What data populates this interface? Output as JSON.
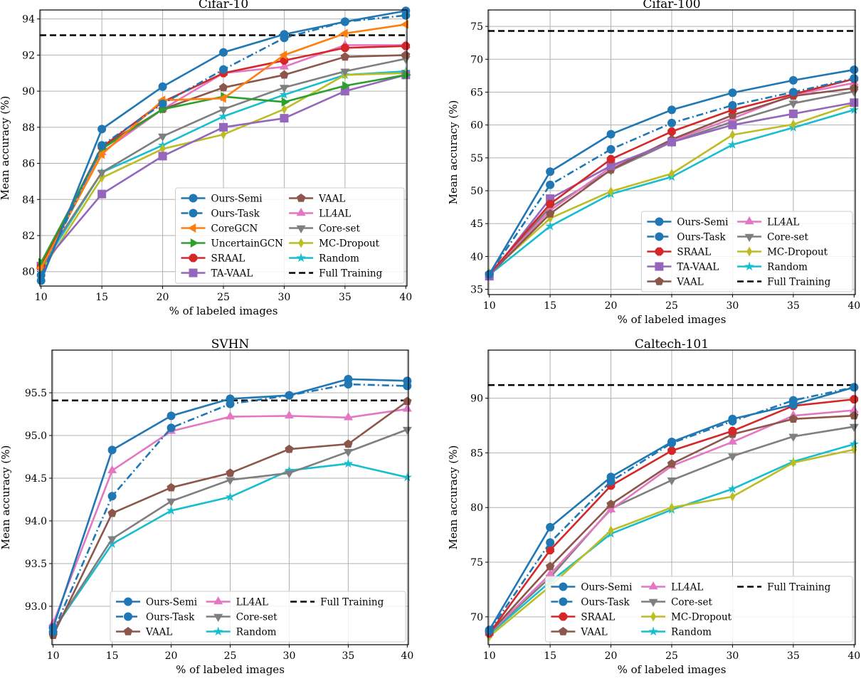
{
  "chart_data": [
    {
      "type": "line",
      "title": "Cifar-10",
      "xlabel": "% of labeled images",
      "ylabel": "Mean accuracy (%)",
      "x": [
        10,
        15,
        20,
        25,
        30,
        35,
        40
      ],
      "xticks": [
        10,
        15,
        20,
        25,
        30,
        35,
        40
      ],
      "yticks": [
        80,
        82,
        84,
        86,
        88,
        90,
        92,
        94
      ],
      "ylim": [
        79.2,
        94.5
      ],
      "xlim": [
        9.9,
        40.1
      ],
      "grid": true,
      "legend": "lower-right",
      "legend_rows": 6,
      "series": [
        {
          "name": "Ours-Semi",
          "color": "#1f77b4",
          "marker": "circle",
          "style": "solid",
          "values": [
            79.5,
            87.9,
            90.25,
            92.15,
            93.15,
            93.85,
            94.45
          ]
        },
        {
          "name": "Ours-Task",
          "color": "#1f77b4",
          "marker": "circle",
          "style": "dashdot",
          "values": [
            79.8,
            87.0,
            89.3,
            91.2,
            92.95,
            93.85,
            94.2
          ]
        },
        {
          "name": "CoreGCN",
          "color": "#ff7f0e",
          "marker": "triangle-left",
          "style": "solid",
          "values": [
            80.2,
            86.5,
            89.5,
            89.6,
            92.0,
            93.2,
            93.7
          ]
        },
        {
          "name": "UncertainGCN",
          "color": "#2ca02c",
          "marker": "triangle-right",
          "style": "solid",
          "values": [
            80.5,
            86.8,
            89.0,
            89.7,
            89.4,
            90.3,
            90.9
          ]
        },
        {
          "name": "SRAAL",
          "color": "#d62728",
          "marker": "octagon",
          "style": "solid",
          "values": [
            80.3,
            86.9,
            89.4,
            91.0,
            91.7,
            92.4,
            92.5
          ]
        },
        {
          "name": "TA-VAAL",
          "color": "#9467bd",
          "marker": "square",
          "style": "solid",
          "values": [
            80.3,
            84.3,
            86.4,
            88.0,
            88.5,
            90.0,
            90.9
          ]
        },
        {
          "name": "VAAL",
          "color": "#8c564b",
          "marker": "pentagon",
          "style": "solid",
          "values": [
            80.4,
            86.9,
            89.0,
            90.2,
            90.9,
            91.9,
            92.0
          ]
        },
        {
          "name": "LL4AL",
          "color": "#e377c2",
          "marker": "triangle-up",
          "style": "solid",
          "values": [
            80.3,
            86.6,
            89.0,
            91.0,
            91.35,
            92.55,
            92.55
          ]
        },
        {
          "name": "Core-set",
          "color": "#7f7f7f",
          "marker": "triangle-down",
          "style": "solid",
          "values": [
            80.4,
            85.5,
            87.5,
            89.0,
            90.2,
            91.1,
            91.8
          ]
        },
        {
          "name": "MC-Dropout",
          "color": "#bcbd22",
          "marker": "diamond",
          "style": "solid",
          "values": [
            80.0,
            85.2,
            86.8,
            87.6,
            89.0,
            90.9,
            91.0
          ]
        },
        {
          "name": "Random",
          "color": "#17becf",
          "marker": "star",
          "style": "solid",
          "values": [
            80.2,
            85.5,
            87.0,
            88.6,
            89.8,
            90.9,
            91.1
          ]
        }
      ],
      "full_training": {
        "name": "Full Training",
        "value": 93.1,
        "color": "#000000"
      }
    },
    {
      "type": "line",
      "title": "Cifar-100",
      "xlabel": "% of labeled images",
      "ylabel": "Mean accuracy (%)",
      "x": [
        10,
        15,
        20,
        25,
        30,
        35,
        40
      ],
      "xticks": [
        10,
        15,
        20,
        25,
        30,
        35,
        40
      ],
      "yticks": [
        35,
        40,
        45,
        50,
        55,
        60,
        65,
        70,
        75
      ],
      "ylim": [
        34.2,
        77.5
      ],
      "xlim": [
        9.9,
        40.1
      ],
      "grid": true,
      "legend": "lower-right",
      "legend_rows": 5,
      "series": [
        {
          "name": "Ours-Semi",
          "color": "#1f77b4",
          "marker": "circle",
          "style": "solid",
          "values": [
            37.3,
            52.9,
            58.6,
            62.3,
            64.9,
            66.8,
            68.4
          ]
        },
        {
          "name": "Ours-Task",
          "color": "#1f77b4",
          "marker": "circle",
          "style": "dashdot",
          "values": [
            37.3,
            50.9,
            56.3,
            60.3,
            63.0,
            65.0,
            67.1
          ]
        },
        {
          "name": "SRAAL",
          "color": "#d62728",
          "marker": "octagon",
          "style": "solid",
          "values": [
            37.3,
            48.0,
            54.8,
            59.0,
            62.3,
            64.7,
            67.0
          ]
        },
        {
          "name": "TA-VAAL",
          "color": "#9467bd",
          "marker": "square",
          "style": "solid",
          "values": [
            37.0,
            48.8,
            53.8,
            57.4,
            60.0,
            61.7,
            63.4
          ]
        },
        {
          "name": "VAAL",
          "color": "#8c564b",
          "marker": "pentagon",
          "style": "solid",
          "values": [
            37.2,
            46.5,
            53.2,
            57.8,
            61.5,
            64.4,
            65.6
          ]
        },
        {
          "name": "LL4AL",
          "color": "#e377c2",
          "marker": "triangle-up",
          "style": "solid",
          "values": [
            37.2,
            47.0,
            53.6,
            57.6,
            61.0,
            64.6,
            66.4
          ]
        },
        {
          "name": "Core-set",
          "color": "#7f7f7f",
          "marker": "triangle-down",
          "style": "solid",
          "values": [
            37.2,
            47.5,
            53.1,
            57.4,
            60.5,
            63.3,
            65.1
          ]
        },
        {
          "name": "MC-Dropout",
          "color": "#bcbd22",
          "marker": "diamond",
          "style": "solid",
          "values": [
            37.5,
            45.8,
            49.9,
            52.6,
            58.5,
            60.1,
            63.2
          ]
        },
        {
          "name": "Random",
          "color": "#17becf",
          "marker": "star",
          "style": "solid",
          "values": [
            37.2,
            44.6,
            49.5,
            52.1,
            57.0,
            59.6,
            62.3
          ]
        }
      ],
      "full_training": {
        "name": "Full Training",
        "value": 74.3,
        "color": "#000000"
      }
    },
    {
      "type": "line",
      "title": "SVHN",
      "xlabel": "% of labeled images",
      "ylabel": "Mean accuracy (%)",
      "x": [
        10,
        15,
        20,
        25,
        30,
        35,
        40
      ],
      "xticks": [
        10,
        15,
        20,
        25,
        30,
        35,
        40
      ],
      "yticks": [
        93.0,
        93.5,
        94.0,
        94.5,
        95.0,
        95.5
      ],
      "yticklabels": [
        "93.0",
        "93.5",
        "94.0",
        "94.5",
        "95.0",
        "95.5"
      ],
      "ylim": [
        92.55,
        96.0
      ],
      "xlim": [
        9.9,
        40.1
      ],
      "grid": true,
      "legend": "lower-right",
      "legend_rows": 3,
      "series": [
        {
          "name": "Ours-Semi",
          "color": "#1f77b4",
          "marker": "circle",
          "style": "solid",
          "values": [
            92.75,
            94.83,
            95.23,
            95.43,
            95.47,
            95.66,
            95.64
          ]
        },
        {
          "name": "Ours-Task",
          "color": "#1f77b4",
          "marker": "circle",
          "style": "dashdot",
          "values": [
            92.7,
            94.29,
            95.09,
            95.37,
            95.47,
            95.6,
            95.58
          ]
        },
        {
          "name": "VAAL",
          "color": "#8c564b",
          "marker": "pentagon",
          "style": "solid",
          "values": [
            92.66,
            94.09,
            94.39,
            94.56,
            94.84,
            94.9,
            95.4
          ]
        },
        {
          "name": "LL4AL",
          "color": "#e377c2",
          "marker": "triangle-up",
          "style": "solid",
          "values": [
            92.8,
            94.59,
            95.05,
            95.22,
            95.23,
            95.21,
            95.31
          ]
        },
        {
          "name": "Core-set",
          "color": "#7f7f7f",
          "marker": "triangle-down",
          "style": "solid",
          "values": [
            92.72,
            93.79,
            94.23,
            94.48,
            94.56,
            94.81,
            95.07
          ]
        },
        {
          "name": "Random",
          "color": "#17becf",
          "marker": "star",
          "style": "solid",
          "values": [
            92.72,
            93.73,
            94.12,
            94.28,
            94.59,
            94.67,
            94.51
          ]
        }
      ],
      "full_training": {
        "name": "Full Training",
        "value": 95.41,
        "color": "#000000"
      }
    },
    {
      "type": "line",
      "title": "Caltech-101",
      "xlabel": "% of labeled images",
      "ylabel": "Mean accuracy (%)",
      "x": [
        10,
        15,
        20,
        25,
        30,
        35,
        40
      ],
      "xticks": [
        10,
        15,
        20,
        25,
        30,
        35,
        40
      ],
      "yticks": [
        70,
        75,
        80,
        85,
        90
      ],
      "ylim": [
        67.45,
        94.4
      ],
      "xlim": [
        9.9,
        40.1
      ],
      "grid": true,
      "legend": "lower-right",
      "legend_rows": 4,
      "series": [
        {
          "name": "Ours-Semi",
          "color": "#1f77b4",
          "marker": "circle",
          "style": "solid",
          "values": [
            68.8,
            78.2,
            82.8,
            86.0,
            88.1,
            89.4,
            91.0
          ]
        },
        {
          "name": "Ours-Task",
          "color": "#1f77b4",
          "marker": "circle",
          "style": "dashdot",
          "values": [
            68.7,
            76.8,
            82.4,
            85.9,
            87.9,
            89.8,
            91.0
          ]
        },
        {
          "name": "SRAAL",
          "color": "#d62728",
          "marker": "octagon",
          "style": "solid",
          "values": [
            68.5,
            76.1,
            82.0,
            85.2,
            87.0,
            89.3,
            89.9
          ]
        },
        {
          "name": "VAAL",
          "color": "#8c564b",
          "marker": "pentagon",
          "style": "solid",
          "values": [
            68.5,
            74.6,
            80.3,
            84.0,
            86.7,
            88.1,
            88.4
          ]
        },
        {
          "name": "LL4AL",
          "color": "#e377c2",
          "marker": "triangle-up",
          "style": "solid",
          "values": [
            68.5,
            73.9,
            79.8,
            83.8,
            86.0,
            88.4,
            88.9
          ]
        },
        {
          "name": "Core-set",
          "color": "#7f7f7f",
          "marker": "triangle-down",
          "style": "solid",
          "values": [
            68.5,
            73.6,
            79.9,
            82.5,
            84.7,
            86.5,
            87.4
          ]
        },
        {
          "name": "MC-Dropout",
          "color": "#bcbd22",
          "marker": "diamond",
          "style": "solid",
          "values": [
            68.2,
            72.8,
            77.9,
            80.0,
            81.0,
            84.1,
            85.3
          ]
        },
        {
          "name": "Random",
          "color": "#17becf",
          "marker": "star",
          "style": "solid",
          "values": [
            68.4,
            73.2,
            77.6,
            79.8,
            81.7,
            84.2,
            85.8
          ]
        }
      ],
      "full_training": {
        "name": "Full Training",
        "value": 91.2,
        "color": "#000000"
      }
    }
  ]
}
